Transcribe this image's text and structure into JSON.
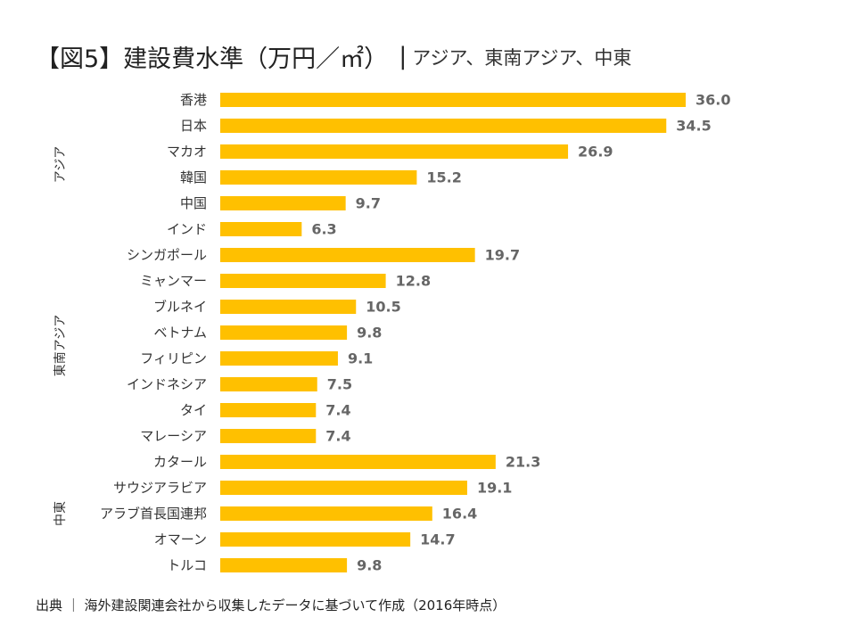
{
  "header": {
    "title": "【図5】建設費水準（万円／㎡）",
    "separator": "|",
    "subtitle": "アジア、東南アジア、中東"
  },
  "footer": {
    "source": "出典 ｜ 海外建設関連会社から収集したデータに基づいて作成（2016年時点）"
  },
  "colors": {
    "bar": "#FFC000",
    "value_label": "#666666",
    "text": "#333333"
  },
  "chart_data": {
    "type": "bar",
    "orientation": "horizontal",
    "xlim": [
      0,
      36
    ],
    "grid": false,
    "categories": [
      "香港",
      "日本",
      "マカオ",
      "韓国",
      "中国",
      "インド",
      "シンガポール",
      "ミャンマー",
      "ブルネイ",
      "ベトナム",
      "フィリピン",
      "インドネシア",
      "タイ",
      "マレーシア",
      "カタール",
      "サウジアラビア",
      "アラブ首長国連邦",
      "オマーン",
      "トルコ"
    ],
    "values": [
      36.0,
      34.5,
      26.9,
      15.2,
      9.7,
      6.3,
      19.7,
      12.8,
      10.5,
      9.8,
      9.1,
      7.5,
      7.4,
      7.4,
      21.3,
      19.1,
      16.4,
      14.7,
      9.8
    ],
    "value_labels": [
      "36.0",
      "34.5",
      "26.9",
      "15.2",
      "9.7",
      "6.3",
      "19.7",
      "12.8",
      "10.5",
      "9.8",
      "9.1",
      "7.5",
      "7.4",
      "7.4",
      "21.3",
      "19.1",
      "16.4",
      "14.7",
      "9.8"
    ],
    "groups": [
      {
        "label": "アジア",
        "start": 0,
        "end": 5
      },
      {
        "label": "東南アジア",
        "start": 6,
        "end": 13
      },
      {
        "label": "中東",
        "start": 14,
        "end": 18
      }
    ]
  }
}
